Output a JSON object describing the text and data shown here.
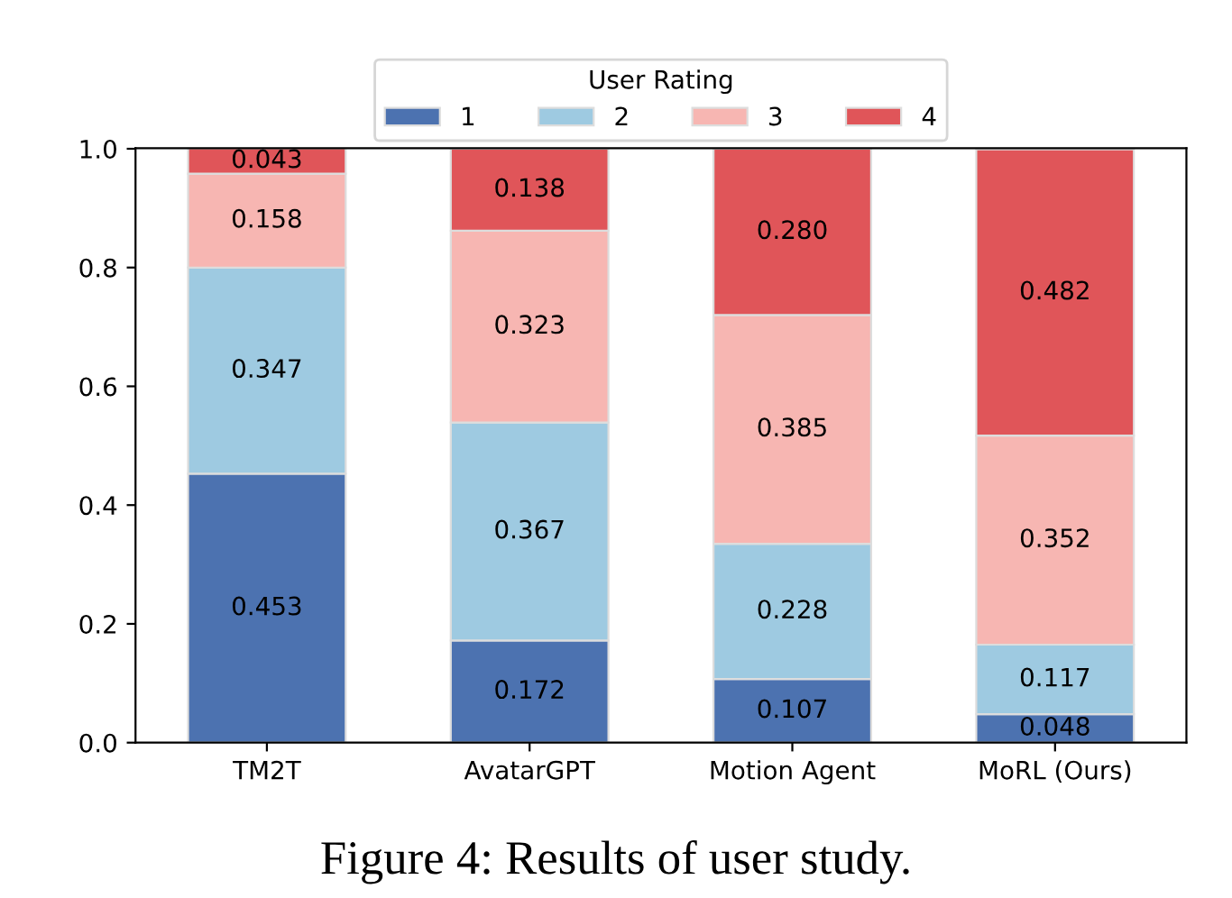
{
  "chart_data": {
    "type": "bar",
    "stacked": true,
    "categories": [
      "TM2T",
      "AvatarGPT",
      "Motion Agent",
      "MoRL (Ours)"
    ],
    "series": [
      {
        "name": "1",
        "color": "#4c72b0",
        "values": [
          0.453,
          0.172,
          0.107,
          0.048
        ]
      },
      {
        "name": "2",
        "color": "#9ecae1",
        "values": [
          0.347,
          0.367,
          0.228,
          0.117
        ]
      },
      {
        "name": "3",
        "color": "#f7b6b2",
        "values": [
          0.158,
          0.323,
          0.385,
          0.352
        ]
      },
      {
        "name": "4",
        "color": "#e05559",
        "values": [
          0.043,
          0.138,
          0.28,
          0.482
        ],
        "value_labels": [
          "0.043",
          "0.138",
          "0.280",
          "0.482"
        ]
      }
    ],
    "legend_title": "User Rating",
    "legend": "top",
    "data_labels": true,
    "ylim": [
      0,
      1.001
    ],
    "yticks": [
      {
        "value": 0,
        "label": "0.0"
      },
      {
        "value": 0.2,
        "label": "0.2"
      },
      {
        "value": 0.4,
        "label": "0.4"
      },
      {
        "value": 0.6,
        "label": "0.6"
      },
      {
        "value": 0.8,
        "label": "0.8"
      },
      {
        "value": 1.0,
        "label": "1.0"
      }
    ],
    "annotations": [
      "Figure 4: Results of user study."
    ]
  }
}
